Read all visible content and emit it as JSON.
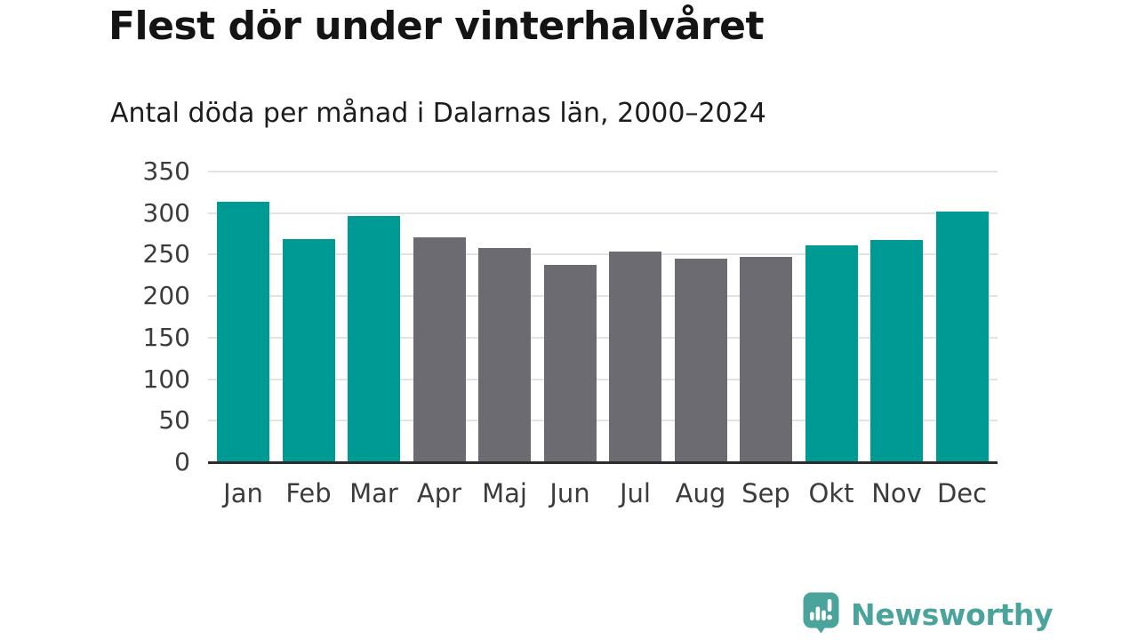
{
  "header": {
    "title": "Flest dör under vinterhalvåret",
    "subtitle": "Antal döda per månad i Dalarnas län, 2000–2024"
  },
  "chart_data": {
    "type": "bar",
    "title": "Flest dör under vinterhalvåret",
    "subtitle": "Antal döda per månad i Dalarnas län, 2000–2024",
    "categories": [
      "Jan",
      "Feb",
      "Mar",
      "Apr",
      "Maj",
      "Jun",
      "Jul",
      "Aug",
      "Sep",
      "Okt",
      "Nov",
      "Dec"
    ],
    "values": [
      314,
      269,
      296,
      271,
      258,
      238,
      254,
      245,
      247,
      261,
      268,
      302
    ],
    "bar_colors": [
      "teal",
      "teal",
      "teal",
      "gray",
      "gray",
      "gray",
      "gray",
      "gray",
      "gray",
      "teal",
      "teal",
      "teal"
    ],
    "xlabel": "",
    "ylabel": "",
    "ylim": [
      0,
      350
    ],
    "yticks": [
      0,
      50,
      100,
      150,
      200,
      250,
      300,
      350
    ],
    "grid": true,
    "legend": "none",
    "colors": {
      "teal": "#009a94",
      "gray": "#6d6b72",
      "gridline": "#e3e3e3",
      "axis_line": "#2d2d2d",
      "tick_text": "#3c3c3c"
    }
  },
  "footer": {
    "brand": "Newsworthy",
    "brand_color": "#4aa49c"
  }
}
